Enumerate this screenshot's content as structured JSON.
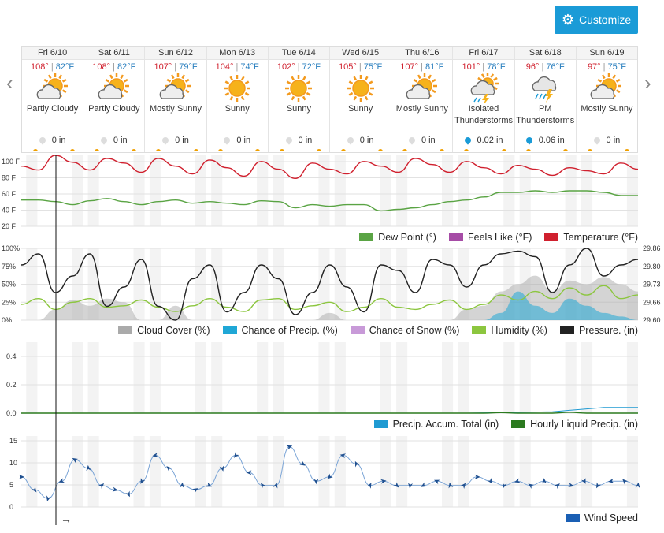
{
  "toolbar": {
    "customize_label": "Customize",
    "gear_icon": "gear-icon"
  },
  "nav": {
    "prev": "‹",
    "next": "›"
  },
  "days": [
    {
      "label": "Fri 6/10",
      "hi": "108°",
      "lo": "82°F",
      "cond1": "Partly Cloudy",
      "cond2": "",
      "icon": "partly-cloudy",
      "precip": "0 in",
      "rain": false
    },
    {
      "label": "Sat 6/11",
      "hi": "108°",
      "lo": "82°F",
      "cond1": "Partly Cloudy",
      "cond2": "",
      "icon": "partly-cloudy",
      "precip": "0 in",
      "rain": false
    },
    {
      "label": "Sun 6/12",
      "hi": "107°",
      "lo": "79°F",
      "cond1": "Mostly Sunny",
      "cond2": "",
      "icon": "partly-cloudy",
      "precip": "0 in",
      "rain": false
    },
    {
      "label": "Mon 6/13",
      "hi": "104°",
      "lo": "74°F",
      "cond1": "Sunny",
      "cond2": "",
      "icon": "sunny",
      "precip": "0 in",
      "rain": false
    },
    {
      "label": "Tue 6/14",
      "hi": "102°",
      "lo": "72°F",
      "cond1": "Sunny",
      "cond2": "",
      "icon": "sunny",
      "precip": "0 in",
      "rain": false
    },
    {
      "label": "Wed 6/15",
      "hi": "105°",
      "lo": "75°F",
      "cond1": "Sunny",
      "cond2": "",
      "icon": "sunny",
      "precip": "0 in",
      "rain": false
    },
    {
      "label": "Thu 6/16",
      "hi": "107°",
      "lo": "81°F",
      "cond1": "Mostly Sunny",
      "cond2": "",
      "icon": "partly-cloudy",
      "precip": "0 in",
      "rain": false
    },
    {
      "label": "Fri 6/17",
      "hi": "101°",
      "lo": "78°F",
      "cond1": "Isolated",
      "cond2": "Thunderstorms",
      "icon": "storm-sun",
      "precip": "0.02 in",
      "rain": true
    },
    {
      "label": "Sat 6/18",
      "hi": "96°",
      "lo": "76°F",
      "cond1": "PM",
      "cond2": "Thunderstorms",
      "icon": "storm",
      "precip": "0.06 in",
      "rain": true
    },
    {
      "label": "Sun 6/19",
      "hi": "97°",
      "lo": "75°F",
      "cond1": "Mostly Sunny",
      "cond2": "",
      "icon": "partly-cloudy",
      "precip": "0 in",
      "rain": false
    }
  ],
  "sep": "|",
  "colors": {
    "temp": "#d0202e",
    "dew": "#5aa444",
    "feels": "#a64ca6",
    "cloud": "#aaaaaa",
    "precip": "#1fa7d6",
    "snow": "#c89ad8",
    "humidity": "#8cc63f",
    "pressure": "#222222",
    "accum": "#1f9ad2",
    "hourly": "#2b7a1f",
    "wind": "#1a5fb4",
    "band": "#f3f3f3"
  },
  "chart1": {
    "yticks": [
      "100 F",
      "80 F",
      "60 F",
      "40 F",
      "20 F"
    ],
    "legend": [
      {
        "label": "Dew Point (°)",
        "key": "dew"
      },
      {
        "label": "Feels Like (°F)",
        "key": "feels"
      },
      {
        "label": "Temperature (°F)",
        "key": "temp"
      }
    ]
  },
  "chart2": {
    "yticks_left": [
      "100%",
      "75%",
      "50%",
      "25%",
      "0%"
    ],
    "yticks_right": [
      "29.86",
      "29.80",
      "29.73",
      "29.66",
      "29.60"
    ],
    "legend": [
      {
        "label": "Cloud Cover (%)",
        "key": "cloud"
      },
      {
        "label": "Chance of Precip. (%)",
        "key": "precip"
      },
      {
        "label": "Chance of Snow (%)",
        "key": "snow"
      },
      {
        "label": "Humidity (%)",
        "key": "humidity"
      },
      {
        "label": "Pressure. (in)",
        "key": "pressure"
      }
    ]
  },
  "chart3": {
    "yticks": [
      "0.4",
      "0.2",
      "0.0"
    ],
    "legend": [
      {
        "label": "Precip. Accum. Total (in)",
        "key": "accum"
      },
      {
        "label": "Hourly Liquid Precip. (in)",
        "key": "hourly"
      }
    ]
  },
  "chart4": {
    "yticks": [
      "15",
      "10",
      "5",
      "0"
    ],
    "legend": [
      {
        "label": "Wind Speed",
        "key": "wind"
      }
    ]
  },
  "now_arrow": "→",
  "chart_data": [
    {
      "type": "line",
      "ylim": [
        20,
        100
      ],
      "series": [
        {
          "name": "Temperature (°F)",
          "values": [
            90,
            85,
            104,
            95,
            85,
            100,
            94,
            82,
            100,
            90,
            80,
            98,
            88,
            77,
            96,
            86,
            74,
            94,
            86,
            80,
            96,
            90,
            82,
            100,
            92,
            82,
            96,
            88,
            80,
            91,
            86,
            78,
            88,
            84,
            80,
            94,
            86
          ]
        },
        {
          "name": "Dew Point (°)",
          "values": [
            46,
            46,
            44,
            40,
            45,
            48,
            44,
            40,
            44,
            46,
            42,
            44,
            42,
            40,
            45,
            44,
            36,
            40,
            38,
            40,
            40,
            32,
            34,
            36,
            40,
            44,
            46,
            50,
            56,
            56,
            58,
            56,
            58,
            58,
            56,
            52,
            52
          ]
        }
      ]
    },
    {
      "type": "area",
      "ylim": [
        0,
        100
      ],
      "right_ylim": [
        29.6,
        29.86
      ],
      "series": [
        {
          "name": "Cloud Cover (%)",
          "values": [
            0,
            0,
            15,
            28,
            20,
            30,
            25,
            0,
            0,
            20,
            0,
            0,
            0,
            0,
            0,
            0,
            0,
            0,
            10,
            0,
            0,
            0,
            0,
            0,
            0,
            0,
            15,
            20,
            40,
            50,
            62,
            40,
            55,
            50,
            60,
            50,
            40
          ]
        },
        {
          "name": "Chance of Precip. (%)",
          "values": [
            0,
            0,
            0,
            0,
            0,
            0,
            0,
            0,
            0,
            0,
            0,
            0,
            0,
            0,
            0,
            0,
            0,
            0,
            0,
            0,
            0,
            0,
            0,
            0,
            0,
            0,
            0,
            0,
            10,
            40,
            20,
            10,
            30,
            20,
            10,
            5,
            0
          ]
        },
        {
          "name": "Humidity (%)",
          "values": [
            22,
            30,
            15,
            25,
            30,
            18,
            20,
            28,
            18,
            12,
            20,
            30,
            18,
            12,
            28,
            30,
            15,
            20,
            25,
            12,
            18,
            30,
            18,
            15,
            22,
            28,
            15,
            22,
            35,
            28,
            40,
            30,
            45,
            35,
            48,
            30,
            35
          ]
        },
        {
          "name": "Pressure. (in)",
          "values": [
            29.8,
            29.84,
            29.7,
            29.76,
            29.84,
            29.65,
            29.72,
            29.82,
            29.65,
            29.6,
            29.75,
            29.8,
            29.63,
            29.7,
            29.8,
            29.75,
            29.62,
            29.7,
            29.8,
            29.72,
            29.63,
            29.8,
            29.78,
            29.7,
            29.82,
            29.8,
            29.72,
            29.8,
            29.84,
            29.85,
            29.83,
            29.7,
            29.8,
            29.86,
            29.76,
            29.8,
            29.82
          ]
        }
      ]
    },
    {
      "type": "line",
      "ylim": [
        0,
        0.5
      ],
      "series": [
        {
          "name": "Precip. Accum. Total (in)",
          "values": [
            0,
            0,
            0,
            0,
            0,
            0,
            0,
            0,
            0,
            0,
            0,
            0,
            0,
            0,
            0,
            0,
            0,
            0,
            0,
            0,
            0,
            0,
            0,
            0,
            0,
            0,
            0,
            0.002,
            0.004,
            0.006,
            0.008,
            0.01,
            0.02,
            0.03,
            0.04,
            0.04,
            0.04
          ]
        },
        {
          "name": "Hourly Liquid Precip. (in)",
          "values": [
            0,
            0,
            0,
            0,
            0,
            0,
            0,
            0,
            0,
            0,
            0,
            0,
            0,
            0,
            0,
            0,
            0,
            0,
            0,
            0,
            0,
            0,
            0,
            0,
            0,
            0,
            0,
            0,
            0.004,
            0,
            0,
            0,
            0.006,
            0,
            0,
            0,
            0
          ]
        }
      ]
    },
    {
      "type": "line",
      "ylim": [
        0,
        16
      ],
      "series": [
        {
          "name": "Wind Speed",
          "values": [
            7,
            4,
            2,
            6,
            11,
            9,
            5,
            4,
            3,
            6,
            12,
            9,
            5,
            4,
            5,
            9,
            12,
            8,
            5,
            5,
            14,
            10,
            6,
            7,
            12,
            10,
            5,
            6,
            5,
            5,
            5,
            6,
            5,
            5,
            7,
            6,
            5,
            6,
            5,
            6,
            5,
            5,
            6,
            5,
            6,
            6,
            5
          ]
        }
      ]
    }
  ]
}
